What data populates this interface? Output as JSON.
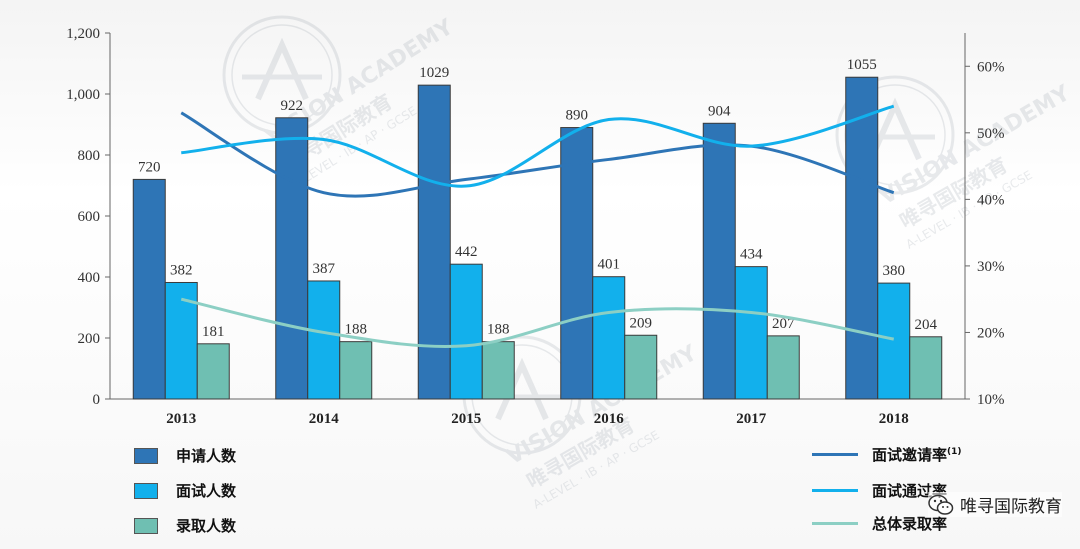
{
  "chart_data": {
    "type": "bar",
    "categories": [
      "2013",
      "2014",
      "2015",
      "2016",
      "2017",
      "2018"
    ],
    "series": [
      {
        "name": "申请人数",
        "kind": "bar",
        "color": "#2e75b6",
        "values": [
          720,
          922,
          1029,
          890,
          904,
          1055
        ]
      },
      {
        "name": "面试人数",
        "kind": "bar",
        "color": "#12b0ec",
        "values": [
          382,
          387,
          442,
          401,
          434,
          380
        ]
      },
      {
        "name": "录取人数",
        "kind": "bar",
        "color": "#6fbfb2",
        "values": [
          181,
          188,
          188,
          209,
          207,
          204
        ]
      },
      {
        "name": "面试邀请率",
        "name_sup": "(1)",
        "kind": "line",
        "axis": "right",
        "color": "#2e75b6",
        "values": [
          53,
          41,
          43,
          46,
          48,
          41
        ]
      },
      {
        "name": "面试通过率",
        "kind": "line",
        "axis": "right",
        "color": "#12b0ec",
        "values": [
          47,
          49,
          42,
          52,
          48,
          54
        ]
      },
      {
        "name": "总体录取率",
        "kind": "line",
        "axis": "right",
        "color": "#8ccfc4",
        "values": [
          25,
          20,
          18,
          23,
          23,
          19
        ]
      }
    ],
    "y_left": {
      "min": 0,
      "max": 1200,
      "ticks": [
        "0",
        "200",
        "400",
        "600",
        "800",
        "1,000",
        "1,200"
      ]
    },
    "y_right": {
      "min": 10,
      "max": 65,
      "ticks": [
        "10%",
        "20%",
        "30%",
        "40%",
        "50%",
        "60%"
      ]
    },
    "grid": false,
    "legend_position": "bottom"
  },
  "watermark": {
    "brand": "VISION ACADEMY",
    "chinese": "唯寻国际教育",
    "sub": "A-LEVEL · IB · AP · GCSE"
  },
  "wechat": {
    "label": "唯寻国际教育",
    "icon": "wechat-icon"
  },
  "colors": {
    "bar_dark": "#2e75b6",
    "bar_light": "#12b0ec",
    "bar_teal": "#6fbfb2"
  }
}
